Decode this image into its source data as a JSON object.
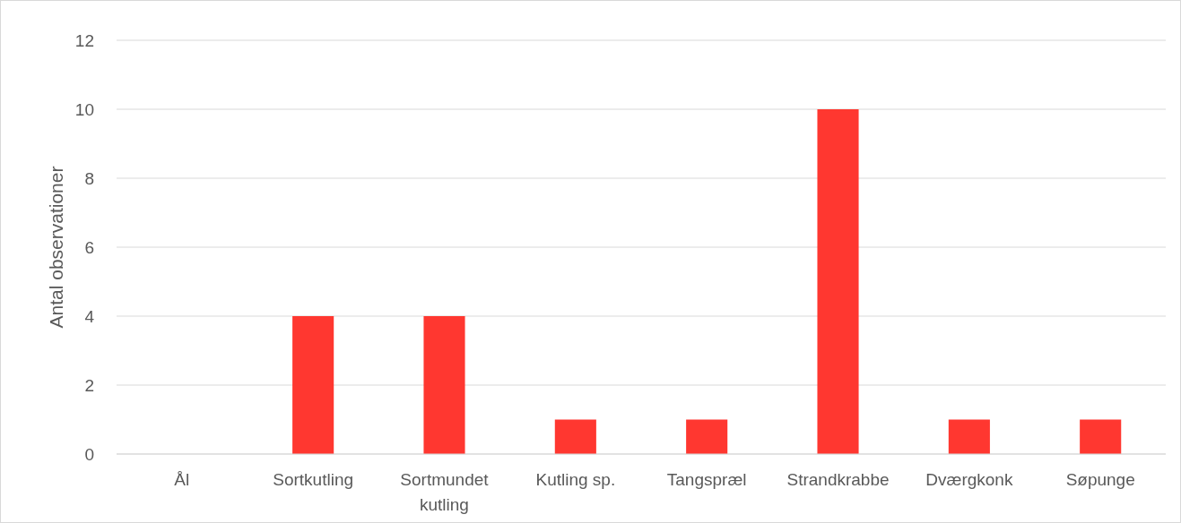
{
  "chart_data": {
    "type": "bar",
    "ylabel": "Antal observationer",
    "categories": [
      "Ål",
      "Sortkutling",
      "Sortmundet kutling",
      "Kutling sp.",
      "Tangspræl",
      "Strandkrabbe",
      "Dværgkonk",
      "Søpunge"
    ],
    "values": [
      0,
      4,
      4,
      1,
      1,
      10,
      1,
      1
    ],
    "color": "#ff3730",
    "ylim": [
      0,
      12
    ],
    "yticks": [
      0,
      2,
      4,
      6,
      8,
      10,
      12
    ],
    "grid": "y"
  }
}
